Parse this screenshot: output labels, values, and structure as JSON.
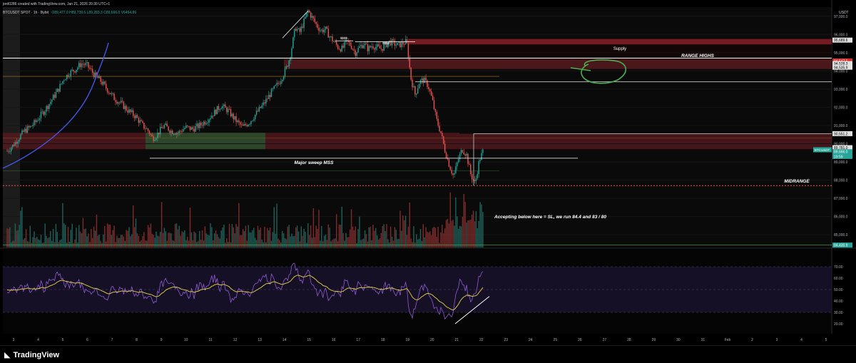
{
  "header": {
    "created_line": "jord0286 created with TradingView.com, Jan 21, 2026 20:30 UTC+1",
    "symbol_line": "BTCUSDT SPOT · 1h · Bybit",
    "ohlc_line": "O89,477.0  H89,739.6  L89,283.3  C89,666.0  V6464.86"
  },
  "price_axis": {
    "currency": "USDT",
    "ticks": [
      "97,000.0",
      "96,000.0",
      "95,000.0",
      "94,000.0",
      "93,000.0",
      "92,000.0",
      "91,000.0",
      "90,000.0",
      "89,000.0",
      "88,000.0",
      "87,000.0",
      "86,000.0",
      "85,000.0"
    ],
    "tags": [
      {
        "label": "95,689.6",
        "value": 95689.6,
        "color": "#e0e0e0",
        "text_color": "#000"
      },
      {
        "label": "94,547.5",
        "value": 94547.5,
        "color": "#d32f2f",
        "text_color": "#fff"
      },
      {
        "label": "94,528.3",
        "value": 94400,
        "color": "#e0e0e0",
        "text_color": "#000"
      },
      {
        "label": "94,535.9",
        "value": 94200,
        "color": "#e0e0e0",
        "text_color": "#000"
      },
      {
        "label": "90,551.2",
        "value": 90551.2,
        "color": "#e0e0e0",
        "text_color": "#000"
      },
      {
        "label": "89,781.0",
        "value": 89781.0,
        "color": "#e0e0e0",
        "text_color": "#000"
      },
      {
        "label": "89,666.0",
        "value": 89560,
        "color": "#26a69a",
        "text_color": "#fff"
      },
      {
        "label": "19:59",
        "value": 89300,
        "color": "#26a69a",
        "text_color": "#fff"
      },
      {
        "label": "84,430.9",
        "value": 84430.9,
        "color": "#26a69a",
        "text_color": "#fff"
      }
    ],
    "symbol_tag": {
      "label": "BTCUSDT",
      "value": 89666.0
    }
  },
  "rsi_axis": {
    "ticks": [
      "70.00",
      "60.00",
      "50.00",
      "40.00",
      "30.00",
      "20.00"
    ]
  },
  "time_axis": {
    "labels": [
      "3",
      "4",
      "5",
      "6",
      "7",
      "8",
      "9",
      "10",
      "11",
      "12",
      "13",
      "14",
      "15",
      "16",
      "17",
      "18",
      "19",
      "20",
      "21",
      "22",
      "23",
      "24",
      "25",
      "26",
      "27",
      "28",
      "29",
      "30",
      "31",
      "Feb",
      "2",
      "3",
      "4",
      "5"
    ]
  },
  "annotations": {
    "supply": "Supply",
    "range_highs": "RANGE HIGHS",
    "major_sweep": "Major sweep MSS",
    "midrange": "MIDRANGE",
    "accepting": "Accepting below here = SL, we run 84.4 and 83 / 80",
    "ssss_1": "$$$$",
    "ssss_2": "$$$$"
  },
  "colors": {
    "up": "#26a69a",
    "down": "#ef5350",
    "zone_red": "#5a1a1f",
    "zone_green": "#2a4a2a",
    "rsi": "#8e5bd1",
    "rsi_ma": "#e8d44a",
    "curve": "#4456e8",
    "circle": "#4caf50"
  },
  "footer": {
    "brand": "TradingView"
  },
  "chart_data": {
    "type": "candlestick",
    "title": "BTCUSDT SPOT · 1h · Bybit",
    "x_type": "hourly date",
    "ylim": [
      84300,
      97500
    ],
    "key_levels": {
      "supply_zone": [
        95500,
        95750
      ],
      "range_highs_zone": [
        94200,
        94600
      ],
      "range_highs_line": 94700,
      "mid_zone": [
        89700,
        90600
      ],
      "major_sweep_line": 89200,
      "midrange_line": 87700,
      "green_demand_zone": [
        89800,
        90600
      ]
    },
    "path_x": [
      0,
      8,
      16,
      24,
      32,
      40,
      52,
      64,
      72,
      80,
      88,
      96,
      104,
      112,
      118,
      124,
      130,
      136,
      142,
      150,
      160,
      170,
      180,
      190,
      198,
      204,
      210,
      220,
      230,
      240,
      250,
      260,
      270,
      280,
      290,
      300,
      310,
      320,
      330,
      340,
      350,
      360,
      370,
      380,
      390,
      396,
      400,
      404,
      410,
      416,
      422,
      428,
      434,
      440,
      446,
      452,
      458,
      464,
      470,
      476,
      482,
      488,
      494,
      500,
      506,
      512,
      518,
      524,
      530,
      536,
      542,
      548,
      554,
      560,
      566,
      572,
      578,
      584,
      590,
      596,
      602,
      608,
      614,
      620,
      626,
      632,
      638,
      644,
      650,
      656,
      662,
      668
    ],
    "path_y": [
      89600,
      89900,
      90300,
      90700,
      90900,
      91200,
      91800,
      92500,
      93000,
      93600,
      93900,
      94100,
      94400,
      94300,
      94000,
      93700,
      93500,
      93200,
      92900,
      92500,
      92200,
      91800,
      91500,
      91000,
      90700,
      90300,
      90500,
      91000,
      90700,
      90600,
      90900,
      90800,
      91000,
      91300,
      91700,
      92100,
      91800,
      91300,
      90900,
      91200,
      91700,
      92200,
      92800,
      93300,
      94000,
      94700,
      95500,
      96400,
      96100,
      96700,
      97300,
      96900,
      96500,
      96200,
      96300,
      95900,
      95600,
      95300,
      95200,
      95600,
      95400,
      95000,
      95300,
      95500,
      95200,
      95400,
      95300,
      95200,
      95400,
      95600,
      95500,
      95400,
      95500,
      95600,
      93600,
      92700,
      93400,
      93500,
      93200,
      92400,
      91300,
      90600,
      89600,
      88800,
      88200,
      89100,
      89700,
      89400,
      88300,
      87800,
      89100,
      89666
    ]
  }
}
